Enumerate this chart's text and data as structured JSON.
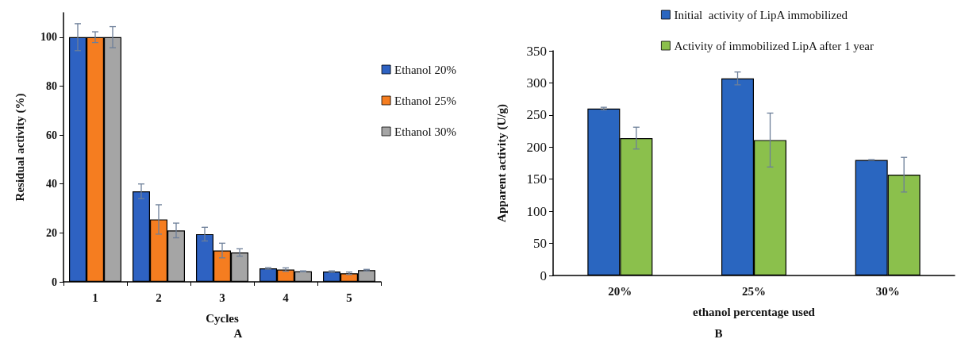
{
  "chart_data": [
    {
      "type": "bar",
      "xlabel": "Cycles",
      "ylabel": "Residual activity (%)",
      "categories": [
        "1",
        "2",
        "3",
        "4",
        "5"
      ],
      "ylim": [
        0,
        110
      ],
      "yticks": [
        0,
        20,
        40,
        60,
        80,
        100
      ],
      "grid": false,
      "legend": "right",
      "annotations": [
        "A"
      ],
      "series": [
        {
          "name": "Ethanol 20%",
          "color": "#2e62c2",
          "values": [
            100,
            37,
            19.5,
            5.5,
            4.2
          ],
          "errors": [
            5.5,
            3,
            2.8,
            0.3,
            0.3
          ]
        },
        {
          "name": "Ethanol 25%",
          "color": "#f57d20",
          "values": [
            100,
            25.5,
            12.8,
            5,
            3.5
          ],
          "errors": [
            2.2,
            6,
            3,
            0.7,
            0.5
          ]
        },
        {
          "name": "Ethanol 30%",
          "color": "#a5a5a5",
          "values": [
            100,
            21,
            12,
            4.3,
            4.8
          ],
          "errors": [
            4.3,
            3,
            1.5,
            0.2,
            0.3
          ]
        }
      ]
    },
    {
      "type": "bar",
      "xlabel": "ethanol percentage used",
      "ylabel": "Apparent activity (U/g)",
      "categories": [
        "20%",
        "25%",
        "30%"
      ],
      "ylim": [
        0,
        350
      ],
      "yticks": [
        0,
        50,
        100,
        150,
        200,
        250,
        300,
        350
      ],
      "grid": false,
      "legend": "top right",
      "annotations": [
        "B"
      ],
      "series": [
        {
          "name": "Initial  activity of LipA immobilized",
          "color": "#2a66c0",
          "values": [
            260,
            307,
            180
          ],
          "errors": [
            2,
            10,
            0.5
          ]
        },
        {
          "name": "Activity of immobilized LipA after 1 year",
          "color": "#8bc04c",
          "values": [
            214,
            211,
            157
          ],
          "errors": [
            17,
            42,
            27
          ]
        }
      ]
    }
  ]
}
